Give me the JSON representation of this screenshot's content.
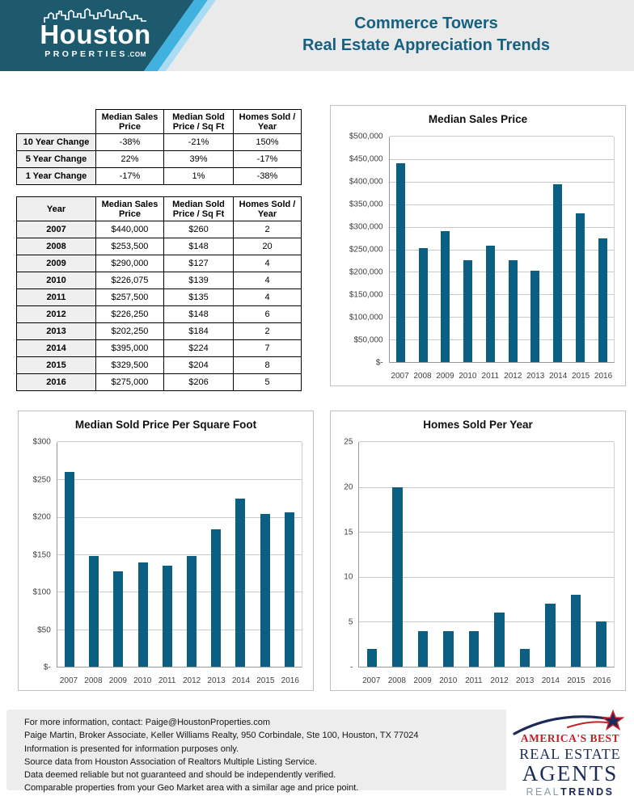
{
  "header": {
    "logo": {
      "name": "Houston",
      "sub": "PROPERTIES",
      "suffix": ".COM"
    },
    "title_line1": "Commerce Towers",
    "title_line2": "Real Estate Appreciation Trends"
  },
  "summary_table": {
    "columns": [
      "",
      "Median Sales Price",
      "Median Sold Price / Sq Ft",
      "Homes Sold / Year"
    ],
    "rows": [
      [
        "10 Year Change",
        "-38%",
        "-21%",
        "150%"
      ],
      [
        "5 Year Change",
        "22%",
        "39%",
        "-17%"
      ],
      [
        "1 Year Change",
        "-17%",
        "1%",
        "-38%"
      ]
    ]
  },
  "yearly_table": {
    "columns": [
      "Year",
      "Median Sales Price",
      "Median Sold Price / Sq Ft",
      "Homes Sold / Year"
    ],
    "rows": [
      [
        "2007",
        "$440,000",
        "$260",
        "2"
      ],
      [
        "2008",
        "$253,500",
        "$148",
        "20"
      ],
      [
        "2009",
        "$290,000",
        "$127",
        "4"
      ],
      [
        "2010",
        "$226,075",
        "$139",
        "4"
      ],
      [
        "2011",
        "$257,500",
        "$135",
        "4"
      ],
      [
        "2012",
        "$226,250",
        "$148",
        "6"
      ],
      [
        "2013",
        "$202,250",
        "$184",
        "2"
      ],
      [
        "2014",
        "$395,000",
        "$224",
        "7"
      ],
      [
        "2015",
        "$329,500",
        "$204",
        "8"
      ],
      [
        "2016",
        "$275,000",
        "$206",
        "5"
      ]
    ]
  },
  "chart_data": [
    {
      "type": "bar",
      "title": "Median Sales Price",
      "categories": [
        "2007",
        "2008",
        "2009",
        "2010",
        "2011",
        "2012",
        "2013",
        "2014",
        "2015",
        "2016"
      ],
      "values": [
        440000,
        253500,
        290000,
        226075,
        257500,
        226250,
        202250,
        395000,
        329500,
        275000
      ],
      "ylim": [
        0,
        500000
      ],
      "ytick_labels_top_down": [
        "$500,000",
        "$450,000",
        "$400,000",
        "$350,000",
        "$300,000",
        "$250,000",
        "$200,000",
        "$150,000",
        "$100,000",
        "$50,000",
        "$-"
      ],
      "grid": true,
      "legend": "none",
      "bar_color": "#0B5F82"
    },
    {
      "type": "bar",
      "title": "Median Sold Price Per Square Foot",
      "categories": [
        "2007",
        "2008",
        "2009",
        "2010",
        "2011",
        "2012",
        "2013",
        "2014",
        "2015",
        "2016"
      ],
      "values": [
        260,
        148,
        127,
        139,
        135,
        148,
        184,
        224,
        204,
        206
      ],
      "ylim": [
        0,
        300
      ],
      "ytick_labels_top_down": [
        "$300",
        "$250",
        "$200",
        "$150",
        "$100",
        "$50",
        "$-"
      ],
      "grid": true,
      "legend": "none",
      "bar_color": "#0B5F82"
    },
    {
      "type": "bar",
      "title": "Homes Sold Per Year",
      "categories": [
        "2007",
        "2008",
        "2009",
        "2010",
        "2011",
        "2012",
        "2013",
        "2014",
        "2015",
        "2016"
      ],
      "values": [
        2,
        20,
        4,
        4,
        4,
        6,
        2,
        7,
        8,
        5
      ],
      "ylim": [
        0,
        25
      ],
      "ytick_labels_top_down": [
        "25",
        "20",
        "15",
        "10",
        "5",
        "-"
      ],
      "grid": true,
      "legend": "none",
      "bar_color": "#0B5F82"
    }
  ],
  "footer": {
    "lines": [
      "For more information, contact: Paige@HoustonProperties.com",
      "Paige Martin, Broker Associate, Keller Williams Realty, 950 Corbindale, Ste 100, Houston, TX 77024",
      "Information is presented for information purposes only.",
      "Source data from Houston Association of Realtors Multiple Listing Service.",
      "Data deemed reliable but not guaranteed and should be independently verified.",
      "Comparable properties from your Geo Market area with a similar age and price point."
    ]
  },
  "badge": {
    "line1": "AMERICA'S BEST",
    "line2": "REAL ESTATE",
    "line3": "AGENTS",
    "line4_light": "REAL",
    "line4_bold": "TRENDS"
  },
  "colors": {
    "bar": "#0B5F82",
    "header_teal": "#1E5A6E",
    "header_stripe": "#41B2E0",
    "title_text": "#17607F",
    "badge_red": "#C22026",
    "badge_navy": "#1B2A56"
  }
}
